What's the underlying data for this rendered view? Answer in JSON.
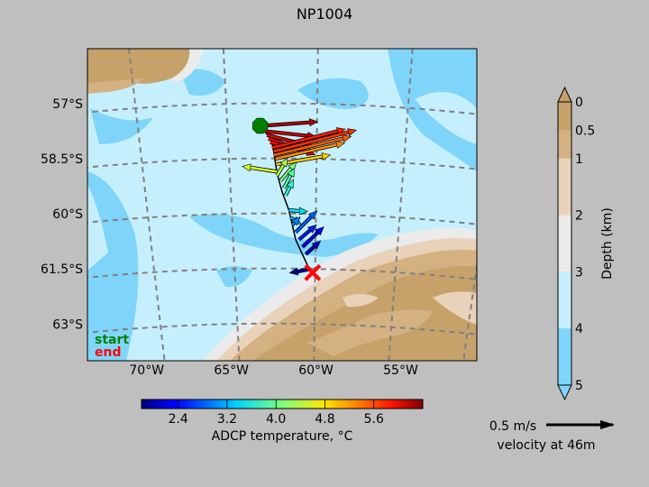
{
  "chart_data": {
    "type": "map",
    "title": "NP1004",
    "lon_range": [
      -73.5,
      -50.5
    ],
    "lat_range": [
      -64.0,
      -55.5
    ],
    "lat_ticks": [
      {
        "value": -57,
        "label": "57°S"
      },
      {
        "value": -58.5,
        "label": "58.5°S"
      },
      {
        "value": -60,
        "label": "60°S"
      },
      {
        "value": -61.5,
        "label": "61.5°S"
      },
      {
        "value": -63,
        "label": "63°S"
      }
    ],
    "lon_ticks": [
      {
        "value": -70,
        "label": "70°W"
      },
      {
        "value": -65,
        "label": "65°W"
      },
      {
        "value": -60,
        "label": "60°W"
      },
      {
        "value": -55,
        "label": "55°W"
      }
    ],
    "start": {
      "lon": -63.3,
      "lat": -57.6,
      "label": "start",
      "color": "#008000"
    },
    "end": {
      "lon": -60.2,
      "lat": -61.6,
      "label": "end",
      "color": "#ff0000"
    },
    "track": [
      [
        -63.3,
        -57.6
      ],
      [
        -62.6,
        -58.0
      ],
      [
        -62.3,
        -58.9
      ],
      [
        -62.0,
        -59.4
      ],
      [
        -61.6,
        -59.9
      ],
      [
        -61.4,
        -60.3
      ],
      [
        -61.2,
        -60.7
      ],
      [
        -60.8,
        -61.1
      ],
      [
        -60.5,
        -61.4
      ],
      [
        -60.2,
        -61.6
      ]
    ],
    "depth_colorbar": {
      "label": "Depth (km)",
      "levels": [
        0,
        0.5,
        1,
        2,
        3,
        4,
        5
      ],
      "tick_labels": [
        "0",
        "0.5",
        "1",
        "2",
        "3",
        "4",
        "5"
      ],
      "colors": [
        "#c6a16a",
        "#d3b181",
        "#e9d2ba",
        "#ebebeb",
        "#c6effd",
        "#7fd5f9"
      ]
    },
    "temperature_colorbar": {
      "label": "ADCP temperature, °C",
      "range": [
        1.8,
        6.4
      ],
      "ticks": [
        2.4,
        3.2,
        4.0,
        4.8,
        5.6
      ],
      "tick_labels": [
        "2.4",
        "3.2",
        "4.0",
        "4.8",
        "5.6"
      ]
    },
    "velocity_key": {
      "speed_label": "0.5 m/s",
      "depth_label": "velocity at 46m"
    },
    "vectors": [
      {
        "lon": -63.2,
        "lat": -57.6,
        "u": 0.42,
        "v": 0.03,
        "temp": 6.2
      },
      {
        "lon": -63.0,
        "lat": -57.75,
        "u": 0.38,
        "v": -0.04,
        "temp": 6.1
      },
      {
        "lon": -62.9,
        "lat": -57.85,
        "u": 0.36,
        "v": -0.09,
        "temp": 6.0
      },
      {
        "lon": -62.8,
        "lat": -57.95,
        "u": 0.35,
        "v": -0.12,
        "temp": 5.9
      },
      {
        "lon": -62.7,
        "lat": -58.05,
        "u": 0.3,
        "v": -0.08,
        "temp": 5.8
      },
      {
        "lon": -62.6,
        "lat": -58.2,
        "u": 0.55,
        "v": 0.14,
        "temp": 5.7
      },
      {
        "lon": -62.5,
        "lat": -58.3,
        "u": 0.62,
        "v": 0.16,
        "temp": 5.6
      },
      {
        "lon": -62.5,
        "lat": -58.4,
        "u": 0.58,
        "v": 0.14,
        "temp": 5.4
      },
      {
        "lon": -62.4,
        "lat": -58.5,
        "u": 0.52,
        "v": 0.12,
        "temp": 5.2
      },
      {
        "lon": -62.3,
        "lat": -58.65,
        "u": 0.4,
        "v": 0.07,
        "temp": 4.9
      },
      {
        "lon": -62.3,
        "lat": -58.85,
        "u": -0.26,
        "v": 0.04,
        "temp": 4.5
      },
      {
        "lon": -62.3,
        "lat": -58.95,
        "u": 0.08,
        "v": 0.13,
        "temp": 4.3
      },
      {
        "lon": -62.1,
        "lat": -59.1,
        "u": 0.12,
        "v": 0.14,
        "temp": 4.1
      },
      {
        "lon": -61.9,
        "lat": -59.3,
        "u": 0.08,
        "v": 0.15,
        "temp": 3.9
      },
      {
        "lon": -61.8,
        "lat": -59.5,
        "u": 0.06,
        "v": 0.12,
        "temp": 3.7
      },
      {
        "lon": -61.6,
        "lat": -59.9,
        "u": 0.14,
        "v": -0.01,
        "temp": 3.4
      },
      {
        "lon": -61.5,
        "lat": -60.1,
        "u": 0.08,
        "v": -0.05,
        "temp": 3.2
      },
      {
        "lon": -61.4,
        "lat": -60.3,
        "u": 0.06,
        "v": 0.06,
        "temp": 3.0
      },
      {
        "lon": -61.2,
        "lat": -60.5,
        "u": 0.16,
        "v": 0.16,
        "temp": 2.8
      },
      {
        "lon": -61.0,
        "lat": -60.7,
        "u": 0.13,
        "v": 0.11,
        "temp": 2.5
      },
      {
        "lon": -60.8,
        "lat": -60.9,
        "u": 0.16,
        "v": 0.15,
        "temp": 2.3
      },
      {
        "lon": -60.6,
        "lat": -61.1,
        "u": 0.11,
        "v": 0.1,
        "temp": 2.1
      },
      {
        "lon": -60.3,
        "lat": -61.5,
        "u": -0.16,
        "v": -0.03,
        "temp": 1.9
      }
    ]
  }
}
